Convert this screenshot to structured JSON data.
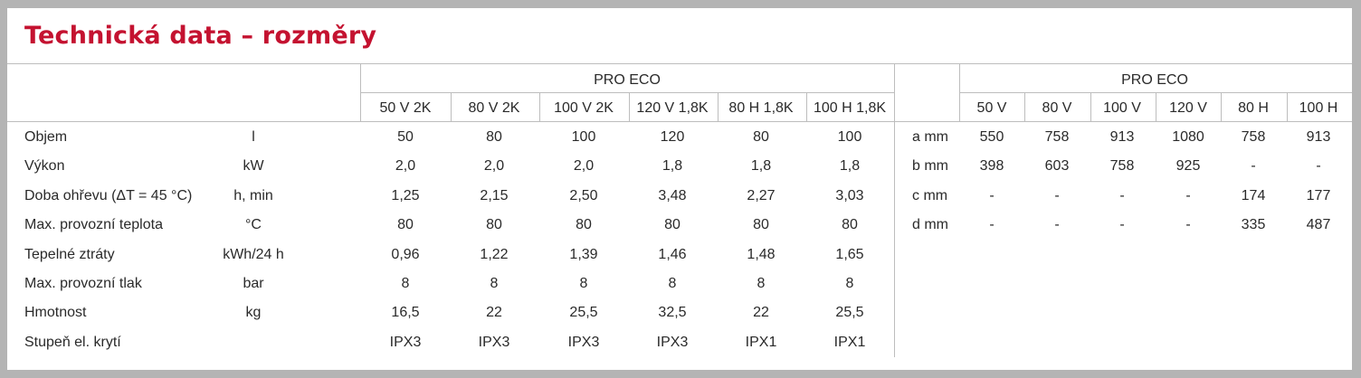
{
  "title": "Technická data – rozměry",
  "left_table": {
    "group_label": "PRO ECO",
    "columns": [
      "50 V 2K",
      "80 V 2K",
      "100 V 2K",
      "120 V 1,8K",
      "80 H 1,8K",
      "100 H 1,8K"
    ],
    "rows": [
      {
        "label": "Objem",
        "unit": "l",
        "values": [
          "50",
          "80",
          "100",
          "120",
          "80",
          "100"
        ]
      },
      {
        "label": "Výkon",
        "unit": "kW",
        "values": [
          "2,0",
          "2,0",
          "2,0",
          "1,8",
          "1,8",
          "1,8"
        ]
      },
      {
        "label": "Doba ohřevu (ΔT = 45 °C)",
        "unit": "h, min",
        "values": [
          "1,25",
          "2,15",
          "2,50",
          "3,48",
          "2,27",
          "3,03"
        ]
      },
      {
        "label": "Max. provozní teplota",
        "unit": "°C",
        "values": [
          "80",
          "80",
          "80",
          "80",
          "80",
          "80"
        ]
      },
      {
        "label": "Tepelné ztráty",
        "unit": "kWh/24 h",
        "values": [
          "0,96",
          "1,22",
          "1,39",
          "1,46",
          "1,48",
          "1,65"
        ]
      },
      {
        "label": "Max. provozní tlak",
        "unit": "bar",
        "values": [
          "8",
          "8",
          "8",
          "8",
          "8",
          "8"
        ]
      },
      {
        "label": "Hmotnost",
        "unit": "kg",
        "values": [
          "16,5",
          "22",
          "25,5",
          "32,5",
          "22",
          "25,5"
        ]
      },
      {
        "label": "Stupeň el. krytí",
        "unit": "",
        "values": [
          "IPX3",
          "IPX3",
          "IPX3",
          "IPX3",
          "IPX1",
          "IPX1"
        ]
      }
    ]
  },
  "right_table": {
    "group_label": "PRO ECO",
    "columns": [
      "50 V",
      "80 V",
      "100 V",
      "120 V",
      "80 H",
      "100 H"
    ],
    "rows": [
      {
        "label": "a mm",
        "values": [
          "550",
          "758",
          "913",
          "1080",
          "758",
          "913"
        ]
      },
      {
        "label": "b mm",
        "values": [
          "398",
          "603",
          "758",
          "925",
          "-",
          "-"
        ]
      },
      {
        "label": "c mm",
        "values": [
          "-",
          "-",
          "-",
          "-",
          "174",
          "177"
        ]
      },
      {
        "label": "d mm",
        "values": [
          "-",
          "-",
          "-",
          "-",
          "335",
          "487"
        ]
      }
    ]
  }
}
